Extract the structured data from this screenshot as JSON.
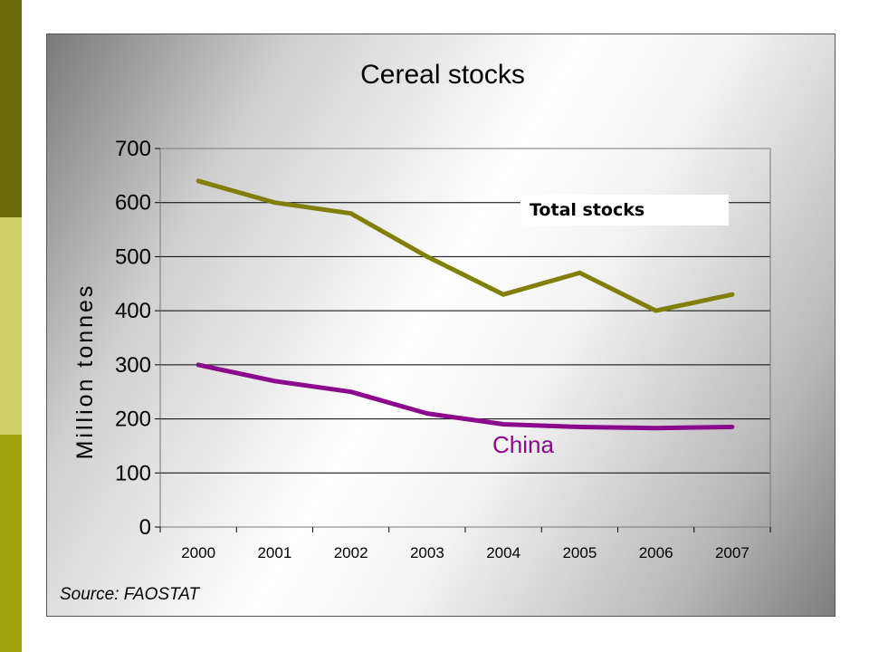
{
  "chart_data": {
    "type": "line",
    "title": "Cereal stocks",
    "xlabel": "",
    "ylabel": "Million tonnes",
    "categories": [
      "2000",
      "2001",
      "2002",
      "2003",
      "2004",
      "2005",
      "2006",
      "2007"
    ],
    "ylim": [
      0,
      700
    ],
    "yticks": [
      0,
      100,
      200,
      300,
      400,
      500,
      600,
      700
    ],
    "grid": true,
    "series": [
      {
        "name": "Total stocks",
        "color": "#7f7f0a",
        "values": [
          640,
          600,
          580,
          500,
          430,
          470,
          400,
          430
        ]
      },
      {
        "name": "China",
        "color": "#8b0a8b",
        "values": [
          300,
          270,
          250,
          210,
          190,
          185,
          183,
          185
        ]
      }
    ],
    "source": "Source: FAOSTAT"
  }
}
